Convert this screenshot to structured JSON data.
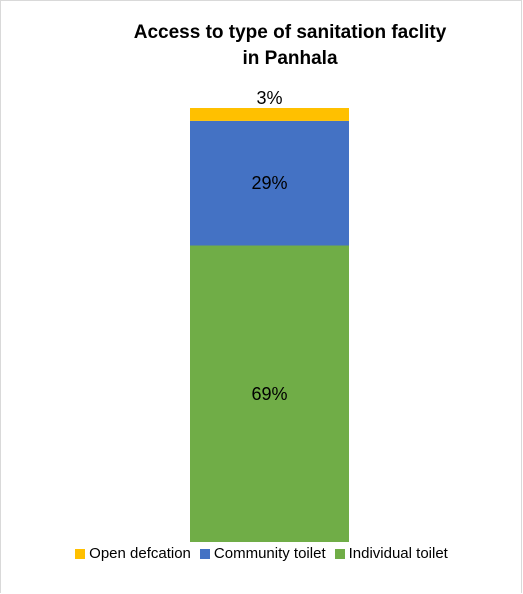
{
  "chart_data": {
    "type": "bar",
    "stacked": true,
    "title_lines": [
      "Access to type of sanitation faclity",
      "in Panhala"
    ],
    "categories": [
      ""
    ],
    "series": [
      {
        "name": "Individual toilet",
        "values": [
          69
        ],
        "label": "69%",
        "color": "#70ad47"
      },
      {
        "name": "Community toilet",
        "values": [
          29
        ],
        "label": "29%",
        "color": "#4472c4"
      },
      {
        "name": "Open defcation",
        "values": [
          3
        ],
        "label": "3%",
        "color": "#ffc000"
      }
    ],
    "ylim": [
      0,
      101
    ],
    "legend_order": [
      "Open defcation",
      "Community toilet",
      "Individual toilet"
    ],
    "legend_position": "bottom",
    "grid": false
  }
}
